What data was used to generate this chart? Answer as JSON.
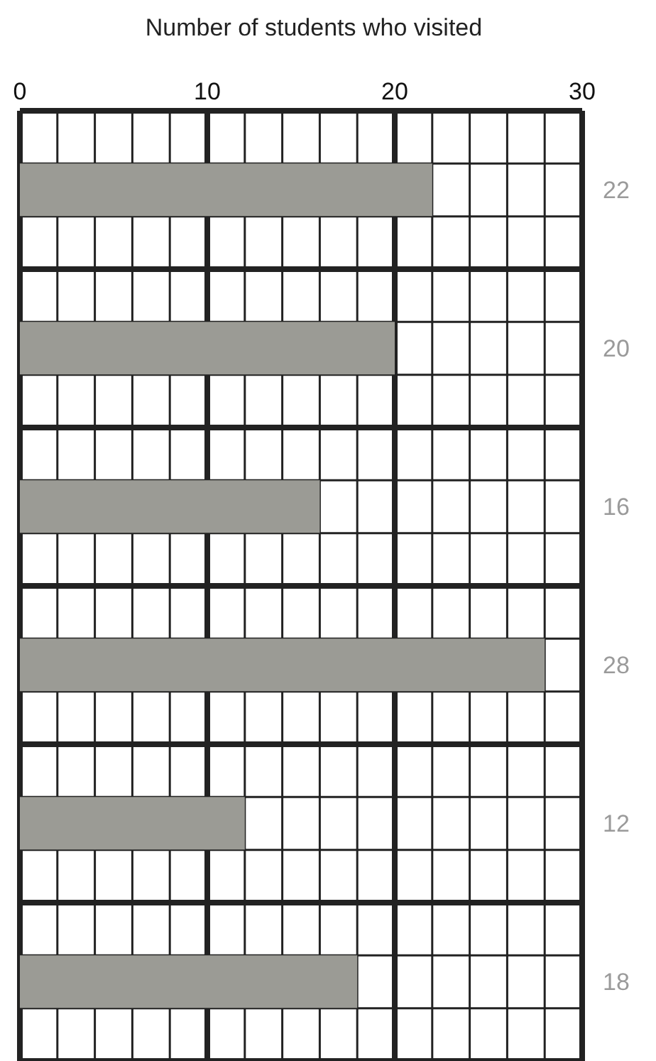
{
  "chart_data": {
    "type": "bar",
    "orientation": "horizontal",
    "xlabel": "Number of students who visited",
    "categories": [
      null,
      null,
      null,
      null,
      null,
      null
    ],
    "values": [
      22,
      20,
      16,
      28,
      12,
      18
    ],
    "color": "#9b9b95",
    "data_labels": true,
    "xlim": [
      0,
      30
    ],
    "xticks": [
      0,
      {
        "value": 2,
        "label": null
      },
      {
        "value": 4,
        "label": null
      },
      {
        "value": 6,
        "label": null
      },
      {
        "value": 8,
        "label": null
      },
      10,
      {
        "value": 12,
        "label": null
      },
      {
        "value": 14,
        "label": null
      },
      {
        "value": 16,
        "label": null
      },
      {
        "value": 18,
        "label": null
      },
      20,
      {
        "value": 22,
        "label": null
      },
      {
        "value": 24,
        "label": null
      },
      {
        "value": 26,
        "label": null
      },
      {
        "value": 28,
        "label": null
      },
      30
    ],
    "grid": true
  }
}
